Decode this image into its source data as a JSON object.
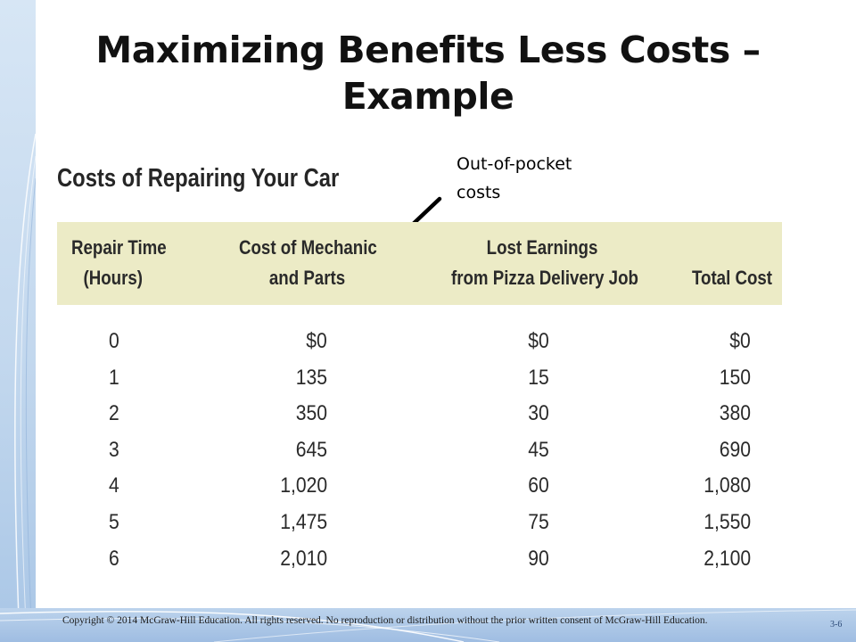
{
  "slide": {
    "title_line1": "Maximizing Benefits Less Costs –",
    "title_line2": "Example",
    "callout": {
      "line1": "Out-of-pocket",
      "line2": "costs"
    },
    "footer": {
      "copyright": "Copyright © 2014 McGraw-Hill Education. All rights reserved. No reproduction or distribution without the prior written consent of McGraw-Hill Education.",
      "slide_number": "3-6"
    }
  },
  "table": {
    "title": "Costs of Repairing Your Car",
    "headers": [
      {
        "line1": "Repair Time",
        "line2": "(Hours)"
      },
      {
        "line1": "Cost of Mechanic",
        "line2": "and Parts"
      },
      {
        "line1": "Lost Earnings",
        "line2": "from Pizza Delivery Job"
      },
      {
        "line1": "",
        "line2": "Total Cost"
      }
    ],
    "rows": [
      [
        "0",
        "$0",
        "$0",
        "$0"
      ],
      [
        "1",
        "135",
        "15",
        "150"
      ],
      [
        "2",
        "350",
        "30",
        "380"
      ],
      [
        "3",
        "645",
        "45",
        "690"
      ],
      [
        "4",
        "1,020",
        "60",
        "1,080"
      ],
      [
        "5",
        "1,475",
        "75",
        "1,550"
      ],
      [
        "6",
        "2,010",
        "90",
        "2,100"
      ]
    ]
  },
  "colors": {
    "header_band": "#ecebc6",
    "accent_blue": "#a9c6e6"
  }
}
